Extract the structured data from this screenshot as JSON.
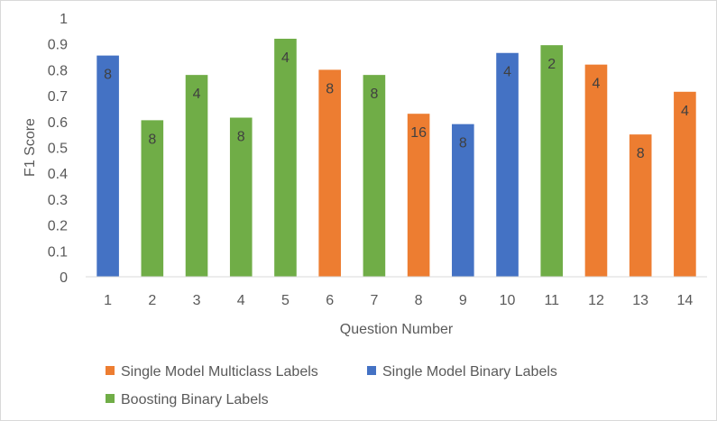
{
  "chart_data": {
    "type": "bar",
    "xlabel": "Question Number",
    "ylabel": "F1 Score",
    "ylim": [
      0,
      1
    ],
    "yticks": [
      "0",
      "0.1",
      "0.2",
      "0.3",
      "0.4",
      "0.5",
      "0.6",
      "0.7",
      "0.8",
      "0.9",
      "1"
    ],
    "categories": [
      "1",
      "2",
      "3",
      "4",
      "5",
      "6",
      "7",
      "8",
      "9",
      "10",
      "11",
      "12",
      "13",
      "14"
    ],
    "legend_position": "bottom",
    "grid": false,
    "groups": [
      {
        "name": "Single Model Multiclass Labels",
        "color": "#ED7D31"
      },
      {
        "name": "Single Model Binary Labels",
        "color": "#4472C4"
      },
      {
        "name": "Boosting Binary Labels",
        "color": "#70AD47"
      }
    ],
    "bars": [
      {
        "category": "1",
        "value": 0.855,
        "group": 1,
        "label": "8"
      },
      {
        "category": "2",
        "value": 0.605,
        "group": 2,
        "label": "8"
      },
      {
        "category": "3",
        "value": 0.78,
        "group": 2,
        "label": "4"
      },
      {
        "category": "4",
        "value": 0.615,
        "group": 2,
        "label": "8"
      },
      {
        "category": "5",
        "value": 0.92,
        "group": 2,
        "label": "4"
      },
      {
        "category": "6",
        "value": 0.8,
        "group": 0,
        "label": "8"
      },
      {
        "category": "7",
        "value": 0.78,
        "group": 2,
        "label": "8"
      },
      {
        "category": "8",
        "value": 0.63,
        "group": 0,
        "label": "16"
      },
      {
        "category": "9",
        "value": 0.59,
        "group": 1,
        "label": "8"
      },
      {
        "category": "10",
        "value": 0.865,
        "group": 1,
        "label": "4"
      },
      {
        "category": "11",
        "value": 0.895,
        "group": 2,
        "label": "2"
      },
      {
        "category": "12",
        "value": 0.82,
        "group": 0,
        "label": "4"
      },
      {
        "category": "13",
        "value": 0.55,
        "group": 0,
        "label": "8"
      },
      {
        "category": "14",
        "value": 0.715,
        "group": 0,
        "label": "4"
      }
    ]
  }
}
